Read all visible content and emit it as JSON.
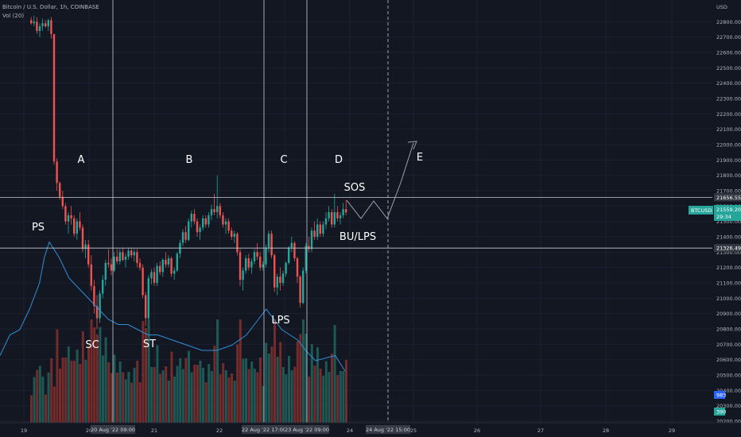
{
  "header": {
    "symbol_line": "Bitcoin / U.S. Dollar, 1h, COINBASE",
    "volume_line": "Vol (20)"
  },
  "price_axis": {
    "currency": "USD",
    "ticks": [
      "22800.00",
      "22700.00",
      "22600.00",
      "22500.00",
      "22400.00",
      "22300.00",
      "22200.00",
      "22100.00",
      "22000.00",
      "21900.00",
      "21800.00",
      "21700.00",
      "21600.00",
      "21500.00",
      "21400.00",
      "21300.00",
      "21200.00",
      "21100.00",
      "21000.00",
      "20900.00",
      "20800.00",
      "20700.00",
      "20600.00",
      "20500.00",
      "20400.00",
      "20300.00",
      "20200.00"
    ]
  },
  "time_axis": {
    "ticks": [
      "19",
      "20",
      "21",
      "22",
      "23",
      "24",
      "25",
      "26",
      "27",
      "28",
      "29"
    ],
    "crosshair_labels": [
      "20 Aug '22",
      "09:00",
      "22 Aug '22",
      "17:00",
      "23 Aug '22",
      "09:00",
      "24 Aug '22",
      "15:00"
    ]
  },
  "badges": {
    "hline_upper": "21656.55",
    "hline_lower": "21326.49",
    "ticker": "BTCUSD",
    "last_price": "21559.20",
    "countdown": "29:34",
    "vol_ma": "983",
    "vol_last": "390"
  },
  "annotations": {
    "phases": [
      "A",
      "B",
      "C",
      "D",
      "E"
    ],
    "events": [
      "PS",
      "SC",
      "ST",
      "LPS",
      "SOS",
      "BU/LPS"
    ]
  },
  "colors": {
    "background": "#131722",
    "up": "#26a69a",
    "down": "#ef5350",
    "volume_up": "#1f5f5a",
    "volume_down": "#7e2d2d",
    "volume_ma": "#2f8fd8",
    "text": "#b2b5be",
    "annotation": "#ffffff",
    "axis_badge": "#363a45"
  },
  "chart_data": {
    "type": "candlestick",
    "timeframe": "1h",
    "y_range": [
      20200,
      22900
    ],
    "x_range_days": [
      "19",
      "29"
    ],
    "horizontal_levels": [
      21656.55,
      21326.49
    ],
    "last_price": 21559.2,
    "candles_ohlc": [
      [
        22810,
        22830,
        22780,
        22790
      ],
      [
        22790,
        22840,
        22770,
        22800
      ],
      [
        22800,
        22830,
        22720,
        22740
      ],
      [
        22740,
        22790,
        22700,
        22770
      ],
      [
        22770,
        22820,
        22740,
        22790
      ],
      [
        22790,
        22810,
        22760,
        22770
      ],
      [
        22770,
        22820,
        22740,
        22810
      ],
      [
        22810,
        22830,
        22690,
        22720
      ],
      [
        22720,
        21900,
        21870,
        21890
      ],
      [
        21890,
        21910,
        21700,
        21750
      ],
      [
        21750,
        21760,
        21640,
        21660
      ],
      [
        21660,
        21700,
        21580,
        21600
      ],
      [
        21600,
        21620,
        21480,
        21500
      ],
      [
        21500,
        21560,
        21420,
        21540
      ],
      [
        21540,
        21600,
        21480,
        21520
      ],
      [
        21520,
        21540,
        21400,
        21420
      ],
      [
        21420,
        21520,
        21380,
        21500
      ],
      [
        21500,
        21560,
        21440,
        21460
      ],
      [
        21460,
        21480,
        21300,
        21320
      ],
      [
        21320,
        21380,
        21260,
        21350
      ],
      [
        21350,
        21380,
        21200,
        21220
      ],
      [
        21220,
        21280,
        21050,
        21080
      ],
      [
        21080,
        21120,
        20900,
        20950
      ],
      [
        20950,
        21020,
        20800,
        20870
      ],
      [
        20870,
        21050,
        20840,
        21030
      ],
      [
        21030,
        21150,
        21000,
        21120
      ],
      [
        21120,
        21250,
        21080,
        21230
      ],
      [
        21230,
        21320,
        21200,
        21220
      ],
      [
        21220,
        21260,
        21150,
        21180
      ],
      [
        21180,
        21300,
        21170,
        21270
      ],
      [
        21270,
        21320,
        21220,
        21240
      ],
      [
        21240,
        21320,
        21220,
        21300
      ],
      [
        21300,
        21330,
        21240,
        21250
      ],
      [
        21250,
        21290,
        21200,
        21270
      ],
      [
        21270,
        21330,
        21250,
        21310
      ],
      [
        21310,
        21330,
        21260,
        21280
      ],
      [
        21280,
        21320,
        21240,
        21300
      ],
      [
        21300,
        21320,
        21200,
        21230
      ],
      [
        21230,
        21260,
        21180,
        21200
      ],
      [
        21200,
        21220,
        21000,
        21020
      ],
      [
        21020,
        21040,
        20820,
        20870
      ],
      [
        20870,
        21150,
        20860,
        21130
      ],
      [
        21130,
        21190,
        21090,
        21170
      ],
      [
        21170,
        21200,
        21080,
        21100
      ],
      [
        21100,
        21230,
        21080,
        21210
      ],
      [
        21210,
        21240,
        21150,
        21170
      ],
      [
        21170,
        21260,
        21140,
        21250
      ],
      [
        21250,
        21300,
        21200,
        21220
      ],
      [
        21220,
        21280,
        21200,
        21260
      ],
      [
        21260,
        21270,
        21140,
        21160
      ],
      [
        21160,
        21200,
        21120,
        21180
      ],
      [
        21180,
        21300,
        21170,
        21290
      ],
      [
        21290,
        21380,
        21260,
        21360
      ],
      [
        21360,
        21450,
        21340,
        21430
      ],
      [
        21430,
        21470,
        21360,
        21380
      ],
      [
        21380,
        21520,
        21370,
        21500
      ],
      [
        21500,
        21570,
        21460,
        21550
      ],
      [
        21550,
        21580,
        21480,
        21500
      ],
      [
        21500,
        21520,
        21400,
        21430
      ],
      [
        21430,
        21480,
        21380,
        21460
      ],
      [
        21460,
        21540,
        21440,
        21520
      ],
      [
        21520,
        21540,
        21460,
        21480
      ],
      [
        21480,
        21560,
        21460,
        21540
      ],
      [
        21540,
        21610,
        21510,
        21580
      ],
      [
        21580,
        21680,
        21540,
        21560
      ],
      [
        21560,
        21800,
        21520,
        21600
      ],
      [
        21600,
        21620,
        21520,
        21540
      ],
      [
        21540,
        21560,
        21460,
        21480
      ],
      [
        21480,
        21520,
        21420,
        21500
      ],
      [
        21500,
        21520,
        21420,
        21440
      ],
      [
        21440,
        21460,
        21380,
        21400
      ],
      [
        21400,
        21440,
        21360,
        21420
      ],
      [
        21420,
        21430,
        21280,
        21300
      ],
      [
        21300,
        21320,
        21080,
        21120
      ],
      [
        21120,
        21200,
        21050,
        21180
      ],
      [
        21180,
        21280,
        21160,
        21260
      ],
      [
        21260,
        21290,
        21180,
        21200
      ],
      [
        21200,
        21260,
        21160,
        21240
      ],
      [
        21240,
        21320,
        21220,
        21300
      ],
      [
        21300,
        21360,
        21250,
        21270
      ],
      [
        21270,
        21300,
        21180,
        21200
      ],
      [
        21200,
        21240,
        21180,
        21220
      ],
      [
        21220,
        21350,
        21200,
        21330
      ],
      [
        21330,
        21440,
        21300,
        21420
      ],
      [
        21420,
        21440,
        21260,
        21280
      ],
      [
        21280,
        21290,
        21040,
        21070
      ],
      [
        21070,
        21160,
        21020,
        21140
      ],
      [
        21140,
        21200,
        21050,
        21100
      ],
      [
        21100,
        21180,
        21080,
        21160
      ],
      [
        21160,
        21240,
        21140,
        21230
      ],
      [
        21230,
        21340,
        21220,
        21330
      ],
      [
        21330,
        21400,
        21300,
        21360
      ],
      [
        21360,
        21370,
        21240,
        21260
      ],
      [
        21260,
        21270,
        21100,
        21140
      ],
      [
        21140,
        21150,
        20940,
        20970
      ],
      [
        20970,
        21200,
        20960,
        21180
      ],
      [
        21180,
        21360,
        21160,
        21340
      ],
      [
        21340,
        21400,
        21300,
        21320
      ],
      [
        21320,
        21460,
        21300,
        21440
      ],
      [
        21440,
        21500,
        21380,
        21400
      ],
      [
        21400,
        21520,
        21380,
        21480
      ],
      [
        21480,
        21500,
        21400,
        21420
      ],
      [
        21420,
        21500,
        21400,
        21480
      ],
      [
        21480,
        21560,
        21450,
        21520
      ],
      [
        21520,
        21600,
        21500,
        21560
      ],
      [
        21560,
        21580,
        21460,
        21480
      ],
      [
        21480,
        21680,
        21460,
        21560
      ],
      [
        21560,
        21600,
        21500,
        21520
      ],
      [
        21520,
        21560,
        21480,
        21540
      ],
      [
        21540,
        21620,
        21520,
        21580
      ],
      [
        21580,
        21640,
        21540,
        21559
      ]
    ],
    "volume_ma_path": [
      [
        0,
        20330
      ],
      [
        10,
        20370
      ],
      [
        20,
        20380
      ],
      [
        30,
        20420
      ],
      [
        40,
        20470
      ],
      [
        45,
        20520
      ],
      [
        50,
        20550
      ],
      [
        60,
        20520
      ],
      [
        70,
        20480
      ],
      [
        80,
        20460
      ],
      [
        90,
        20440
      ],
      [
        100,
        20420
      ],
      [
        110,
        20400
      ],
      [
        120,
        20390
      ],
      [
        130,
        20390
      ],
      [
        140,
        20380
      ],
      [
        150,
        20370
      ],
      [
        160,
        20370
      ],
      [
        175,
        20360
      ],
      [
        190,
        20350
      ],
      [
        205,
        20340
      ],
      [
        220,
        20340
      ],
      [
        235,
        20350
      ],
      [
        250,
        20370
      ],
      [
        262,
        20400
      ],
      [
        270,
        20420
      ],
      [
        278,
        20400
      ],
      [
        286,
        20380
      ],
      [
        294,
        20370
      ],
      [
        302,
        20360
      ],
      [
        310,
        20340
      ],
      [
        320,
        20320
      ],
      [
        340,
        20330
      ],
      [
        350,
        20300
      ]
    ]
  }
}
